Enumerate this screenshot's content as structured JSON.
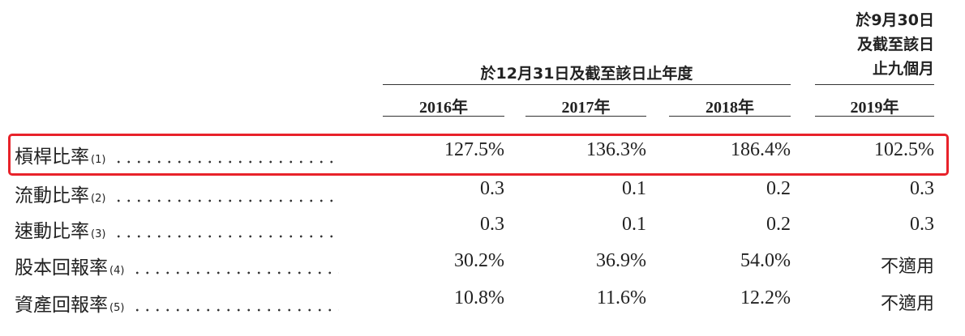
{
  "header": {
    "group": "於12月31日及截至該日止年度",
    "period_lines": [
      "於9月30日",
      "及截至該日",
      "止九個月"
    ],
    "years": [
      "2016年",
      "2017年",
      "2018年",
      "2019年"
    ]
  },
  "table": {
    "rows": [
      {
        "label": "槓桿比率",
        "note": "(1)",
        "cells": [
          "127.5%",
          "136.3%",
          "186.4%",
          "102.5%"
        ]
      },
      {
        "label": "流動比率",
        "note": "(2)",
        "cells": [
          "0.3",
          "0.1",
          "0.2",
          "0.3"
        ]
      },
      {
        "label": "速動比率",
        "note": "(3)",
        "cells": [
          "0.3",
          "0.1",
          "0.2",
          "0.3"
        ]
      },
      {
        "label": "股本回報率",
        "note": "(4)",
        "cells": [
          "30.2%",
          "36.9%",
          "54.0%",
          "不適用"
        ]
      },
      {
        "label": "資產回報率",
        "note": "(5)",
        "cells": [
          "10.8%",
          "11.6%",
          "12.2%",
          "不適用"
        ]
      }
    ]
  }
}
